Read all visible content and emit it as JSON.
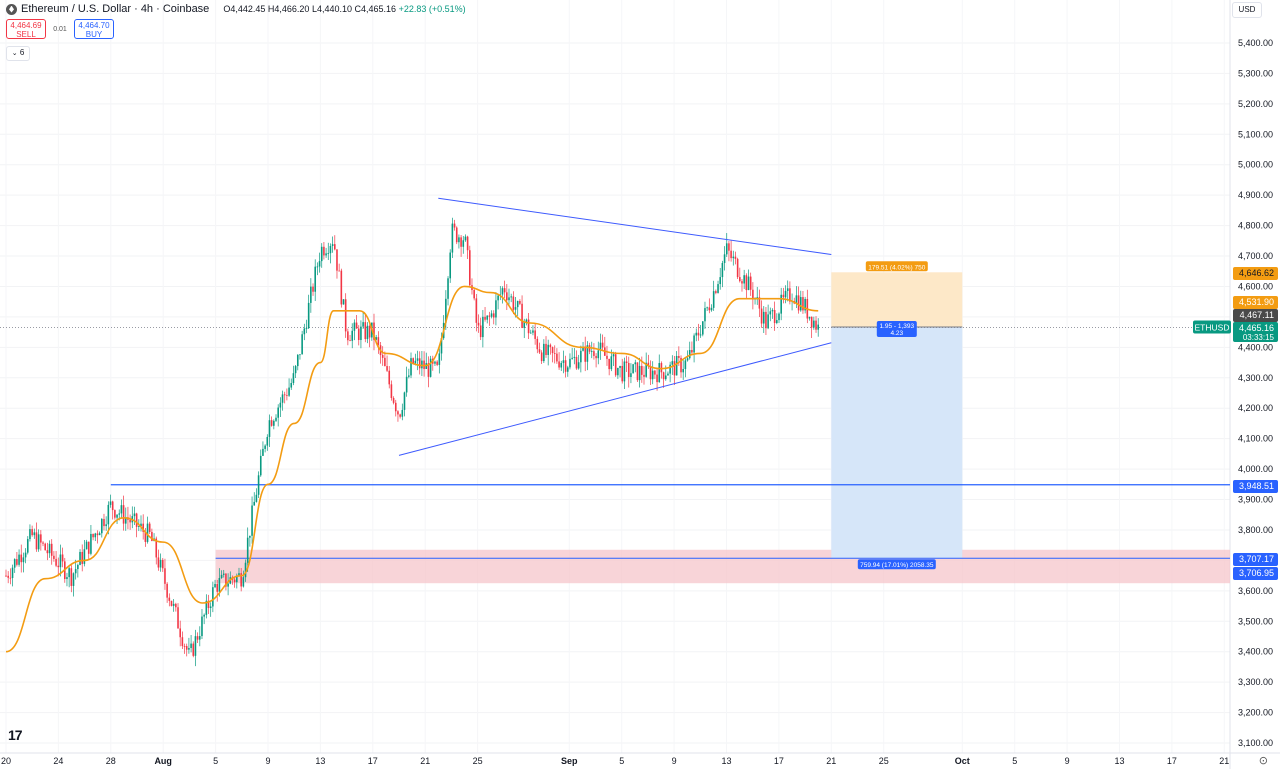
{
  "header": {
    "title": "Ethereum / U.S. Dollar · 4h · Coinbase",
    "open": "O4,442.45",
    "high": "H4,466.20",
    "low": "L4,440.10",
    "close": "C4,465.16",
    "change": "+22.83 (+0.51%)"
  },
  "trade": {
    "sell_price": "4,464.69",
    "sell_label": "SELL",
    "spread": "0.01",
    "buy_price": "4,464.70",
    "buy_label": "BUY"
  },
  "indicators_count": "6",
  "currency": "USD",
  "colors": {
    "up": "#089981",
    "down": "#f23645",
    "ma": "#f39c12",
    "trendline": "#3d5afe",
    "level": "#2962ff",
    "zone": "#f5c6cb",
    "target_zone": "#fde8c8",
    "stop_zone": "#d6e6f9"
  },
  "chart_data": {
    "type": "candlestick",
    "timeframe": "4h",
    "symbol": "ETHUSD",
    "ylim": [
      3100,
      5500
    ],
    "y_ticks": [
      "5,400.00",
      "5,300.00",
      "5,200.00",
      "5,100.00",
      "5,000.00",
      "4,900.00",
      "4,800.00",
      "4,700.00",
      "4,600.00",
      "4,500.00",
      "4,400.00",
      "4,300.00",
      "4,200.00",
      "4,100.00",
      "4,000.00",
      "3,900.00",
      "3,800.00",
      "3,700.00",
      "3,600.00",
      "3,500.00",
      "3,400.00",
      "3,300.00",
      "3,200.00",
      "3,100.00"
    ],
    "x_ticks": [
      "20",
      "24",
      "28",
      "Aug",
      "5",
      "9",
      "13",
      "17",
      "21",
      "25",
      "Sep",
      "5",
      "9",
      "13",
      "17",
      "21",
      "25",
      "Oct",
      "5",
      "9",
      "13",
      "17",
      "21"
    ],
    "price_anchors": [
      {
        "date": "2025-07-20",
        "price": 3650
      },
      {
        "date": "2025-07-22",
        "price": 3780
      },
      {
        "date": "2025-07-25",
        "price": 3650
      },
      {
        "date": "2025-07-28",
        "price": 3880
      },
      {
        "date": "2025-07-31",
        "price": 3780
      },
      {
        "date": "2025-08-03",
        "price": 3380
      },
      {
        "date": "2025-08-05",
        "price": 3620
      },
      {
        "date": "2025-08-07",
        "price": 3650
      },
      {
        "date": "2025-08-09",
        "price": 4150
      },
      {
        "date": "2025-08-11",
        "price": 4300
      },
      {
        "date": "2025-08-13",
        "price": 4720
      },
      {
        "date": "2025-08-14",
        "price": 4760
      },
      {
        "date": "2025-08-15",
        "price": 4450
      },
      {
        "date": "2025-08-17",
        "price": 4450
      },
      {
        "date": "2025-08-19",
        "price": 4180
      },
      {
        "date": "2025-08-20",
        "price": 4350
      },
      {
        "date": "2025-08-22",
        "price": 4320
      },
      {
        "date": "2025-08-23",
        "price": 4780
      },
      {
        "date": "2025-08-24",
        "price": 4760
      },
      {
        "date": "2025-08-25",
        "price": 4450
      },
      {
        "date": "2025-08-26",
        "price": 4500
      },
      {
        "date": "2025-08-27",
        "price": 4600
      },
      {
        "date": "2025-08-30",
        "price": 4380
      },
      {
        "date": "2025-09-01",
        "price": 4350
      },
      {
        "date": "2025-09-03",
        "price": 4400
      },
      {
        "date": "2025-09-05",
        "price": 4320
      },
      {
        "date": "2025-09-08",
        "price": 4320
      },
      {
        "date": "2025-09-10",
        "price": 4350
      },
      {
        "date": "2025-09-12",
        "price": 4580
      },
      {
        "date": "2025-09-13",
        "price": 4720
      },
      {
        "date": "2025-09-15",
        "price": 4580
      },
      {
        "date": "2025-09-16",
        "price": 4480
      },
      {
        "date": "2025-09-18",
        "price": 4580
      },
      {
        "date": "2025-09-19",
        "price": 4530
      },
      {
        "date": "2025-09-20",
        "price": 4465
      }
    ],
    "moving_average_anchors": [
      {
        "date": "2025-07-20",
        "price": 3400
      },
      {
        "date": "2025-07-23",
        "price": 3640
      },
      {
        "date": "2025-07-26",
        "price": 3700
      },
      {
        "date": "2025-07-29",
        "price": 3840
      },
      {
        "date": "2025-08-01",
        "price": 3760
      },
      {
        "date": "2025-08-04",
        "price": 3560
      },
      {
        "date": "2025-08-07",
        "price": 3650
      },
      {
        "date": "2025-08-09",
        "price": 3950
      },
      {
        "date": "2025-08-11",
        "price": 4150
      },
      {
        "date": "2025-08-13",
        "price": 4350
      },
      {
        "date": "2025-08-14",
        "price": 4520
      },
      {
        "date": "2025-08-16",
        "price": 4520
      },
      {
        "date": "2025-08-18",
        "price": 4380
      },
      {
        "date": "2025-08-21",
        "price": 4340
      },
      {
        "date": "2025-08-24",
        "price": 4600
      },
      {
        "date": "2025-08-26",
        "price": 4580
      },
      {
        "date": "2025-08-29",
        "price": 4480
      },
      {
        "date": "2025-09-02",
        "price": 4400
      },
      {
        "date": "2025-09-05",
        "price": 4380
      },
      {
        "date": "2025-09-08",
        "price": 4330
      },
      {
        "date": "2025-09-11",
        "price": 4380
      },
      {
        "date": "2025-09-14",
        "price": 4560
      },
      {
        "date": "2025-09-17",
        "price": 4560
      },
      {
        "date": "2025-09-20",
        "price": 4520
      }
    ],
    "trendlines": [
      {
        "name": "upper",
        "from": {
          "date": "2025-08-22",
          "price": 4890
        },
        "to": {
          "date": "2025-09-21",
          "price": 4705
        }
      },
      {
        "name": "lower",
        "from": {
          "date": "2025-08-19",
          "price": 4045
        },
        "to": {
          "date": "2025-09-21",
          "price": 4415
        }
      }
    ],
    "horizontal_level": {
      "price": 3948.51,
      "from_date": "2025-07-28"
    },
    "support_zone": {
      "from_date": "2025-08-05",
      "top": 3735,
      "bottom": 3625
    },
    "position": {
      "from_date": "2025-09-21",
      "to_date": "2025-10-01",
      "entry": 4467,
      "target": 4646.62,
      "stop": 3707.17,
      "target_label": "179.51 (4.02%) 750",
      "entry_label_1": "1.95 - 1,393",
      "entry_label_2": "4.23",
      "stop_label": "759.94 (17.01%) 2058.35"
    },
    "price_labels": [
      {
        "value": "4,646.62",
        "color": "#f39c12",
        "text_color": "#131722"
      },
      {
        "value": "4,531.90",
        "color": "#f39c12",
        "text_color": "#ffffff"
      },
      {
        "value": "4,467.11",
        "color": "#4a4a4a",
        "text_color": "#ffffff"
      },
      {
        "value": "4,465.16",
        "color": "#089981",
        "text_color": "#ffffff",
        "sub": "03:33:15"
      },
      {
        "value": "3,948.51",
        "color": "#2962ff",
        "text_color": "#ffffff"
      },
      {
        "value": "3,707.17",
        "color": "#2962ff",
        "text_color": "#ffffff"
      },
      {
        "value": "3,706.95",
        "color": "#2962ff",
        "text_color": "#ffffff"
      }
    ],
    "symbol_tag": "ETHUSD"
  }
}
